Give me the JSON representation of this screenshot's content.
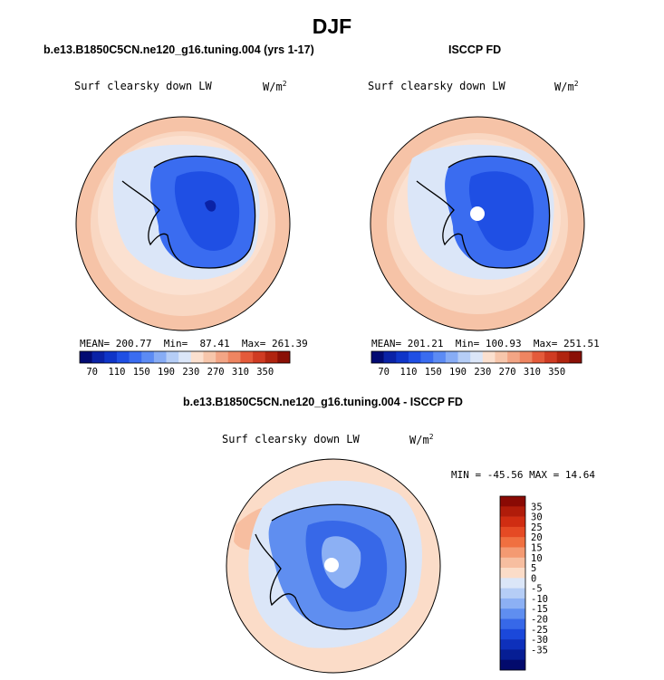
{
  "title": "DJF",
  "panels": [
    {
      "id": "model",
      "case_title": "b.e13.B1850C5CN.ne120_g16.tuning.004 (yrs 1-17)",
      "variable": "Surf clearsky down LW",
      "units": "W/m",
      "units_exp": "2",
      "mean_label": "MEAN=",
      "mean": "200.77",
      "min_label": "Min=",
      "min": "87.41",
      "max_label": "Max=",
      "max": "261.39",
      "has_polar_hole": false
    },
    {
      "id": "obs",
      "case_title": "ISCCP FD",
      "variable": "Surf clearsky down LW",
      "units": "W/m",
      "units_exp": "2",
      "mean_label": "MEAN=",
      "mean": "201.21",
      "min_label": "Min=",
      "min": "100.93",
      "max_label": "Max=",
      "max": "251.51",
      "has_polar_hole": true
    }
  ],
  "difference": {
    "case_title": "b.e13.B1850C5CN.ne120_g16.tuning.004 - ISCCP FD",
    "variable": "Surf clearsky down LW",
    "units": "W/m",
    "units_exp": "2",
    "minmax_text": "MIN = -45.56 MAX =  14.64",
    "has_polar_hole": true
  },
  "chart_data": [
    {
      "type": "heatmap",
      "projection": "south-polar-stereographic",
      "title": "b.e13.B1850C5CN.ne120_g16.tuning.004 (yrs 1-17)",
      "variable": "Surf clearsky down LW",
      "units": "W/m2",
      "stats": {
        "mean": 200.77,
        "min": 87.41,
        "max": 261.39
      },
      "colorbar": {
        "orientation": "horizontal",
        "tick_labels": [
          "70",
          "110",
          "150",
          "190",
          "230",
          "270",
          "310",
          "350"
        ],
        "colors": [
          "#020a72",
          "#0a22a6",
          "#0f35c8",
          "#1f4fe4",
          "#3a6cf0",
          "#5c8bf4",
          "#87acf5",
          "#b5cdf6",
          "#dbe6f8",
          "#fbe0cf",
          "#f7c6ab",
          "#f3a585",
          "#ee8561",
          "#e45a3a",
          "#cf3b22",
          "#b0240f",
          "#8a1006"
        ]
      }
    },
    {
      "type": "heatmap",
      "projection": "south-polar-stereographic",
      "title": "ISCCP FD",
      "variable": "Surf clearsky down LW",
      "units": "W/m2",
      "stats": {
        "mean": 201.21,
        "min": 100.93,
        "max": 251.51
      },
      "colorbar": {
        "orientation": "horizontal",
        "tick_labels": [
          "70",
          "110",
          "150",
          "190",
          "230",
          "270",
          "310",
          "350"
        ],
        "colors": [
          "#020a72",
          "#0a22a6",
          "#0f35c8",
          "#1f4fe4",
          "#3a6cf0",
          "#5c8bf4",
          "#87acf5",
          "#b5cdf6",
          "#dbe6f8",
          "#fbe0cf",
          "#f7c6ab",
          "#f3a585",
          "#ee8561",
          "#e45a3a",
          "#cf3b22",
          "#b0240f",
          "#8a1006"
        ]
      }
    },
    {
      "type": "heatmap",
      "projection": "south-polar-stereographic",
      "title": "b.e13.B1850C5CN.ne120_g16.tuning.004 - ISCCP FD",
      "variable": "Surf clearsky down LW",
      "units": "W/m2",
      "stats": {
        "min": -45.56,
        "max": 14.64
      },
      "colorbar": {
        "orientation": "vertical",
        "tick_labels": [
          "35",
          "30",
          "25",
          "20",
          "15",
          "10",
          "5",
          "0",
          "-5",
          "-10",
          "-15",
          "-20",
          "-25",
          "-30",
          "-35"
        ],
        "colors": [
          "#8a0a04",
          "#b01c0a",
          "#d02d12",
          "#e54a24",
          "#f07040",
          "#f49a72",
          "#f7bea0",
          "#fbdcc8",
          "#dbe6f8",
          "#b5cdf6",
          "#8cb0f4",
          "#5f8ef0",
          "#3768e8",
          "#1b48da",
          "#0e30bb",
          "#061e94",
          "#020a6c"
        ]
      }
    }
  ]
}
